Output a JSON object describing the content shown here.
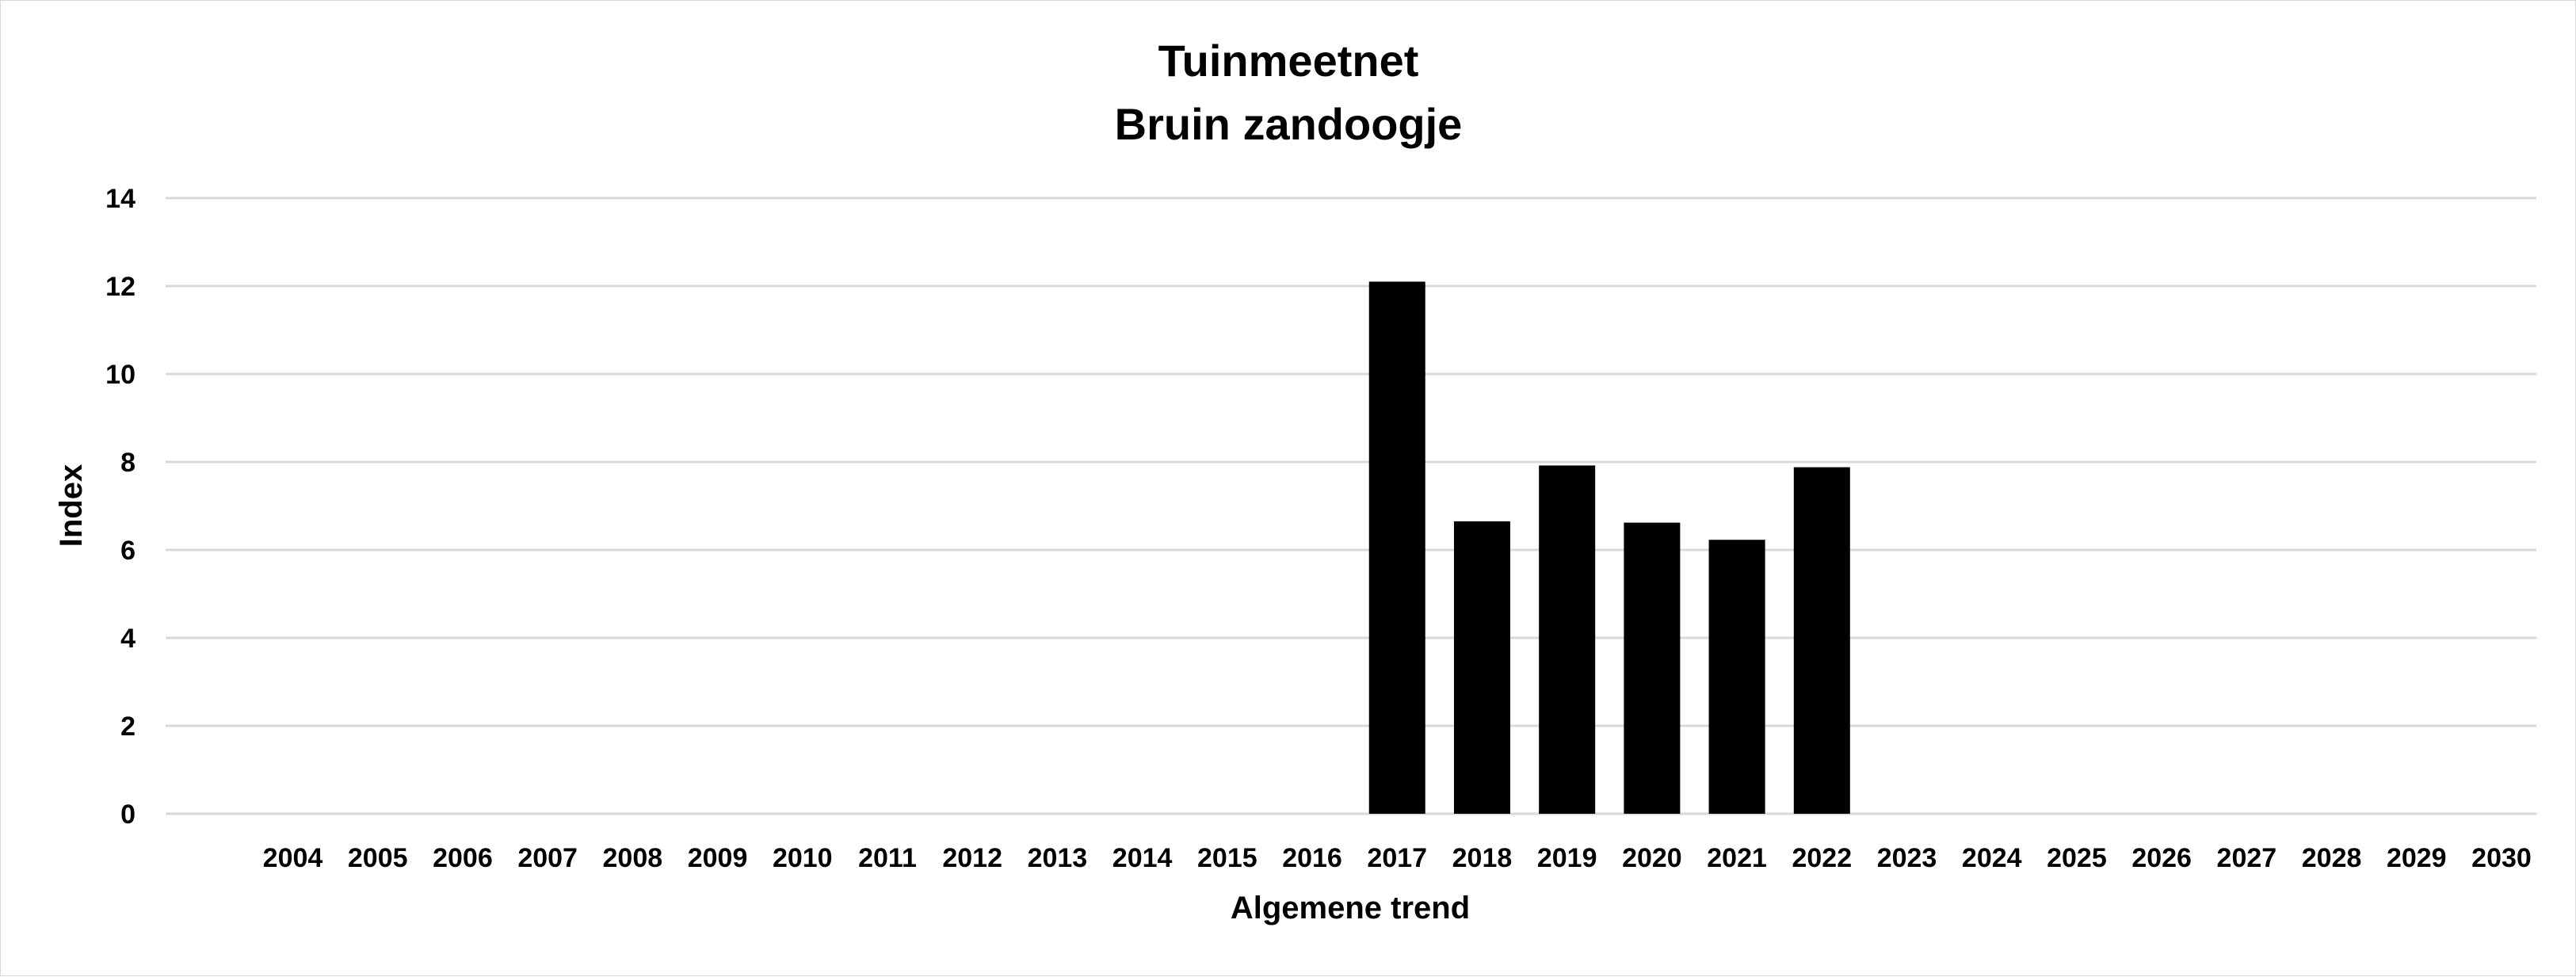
{
  "chart_data": {
    "type": "bar",
    "title": [
      "Tuinmeetnet",
      "Bruin zandoogje"
    ],
    "xlabel": "Algemene trend",
    "ylabel": "Index",
    "ylim": [
      0,
      14
    ],
    "yticks": [
      0,
      2,
      4,
      6,
      8,
      10,
      12,
      14
    ],
    "grid": true,
    "legend": "none",
    "bar_color": "#000000",
    "categories": [
      "2004",
      "2005",
      "2006",
      "2007",
      "2008",
      "2009",
      "2010",
      "2011",
      "2012",
      "2013",
      "2014",
      "2015",
      "2016",
      "2017",
      "2018",
      "2019",
      "2020",
      "2021",
      "2022",
      "2023",
      "2024",
      "2025",
      "2026",
      "2027",
      "2028",
      "2029",
      "2030"
    ],
    "values": [
      null,
      null,
      null,
      null,
      null,
      null,
      null,
      null,
      null,
      null,
      null,
      null,
      null,
      12.1,
      6.65,
      7.92,
      6.62,
      6.23,
      7.88,
      null,
      null,
      null,
      null,
      null,
      null,
      null,
      null
    ]
  }
}
